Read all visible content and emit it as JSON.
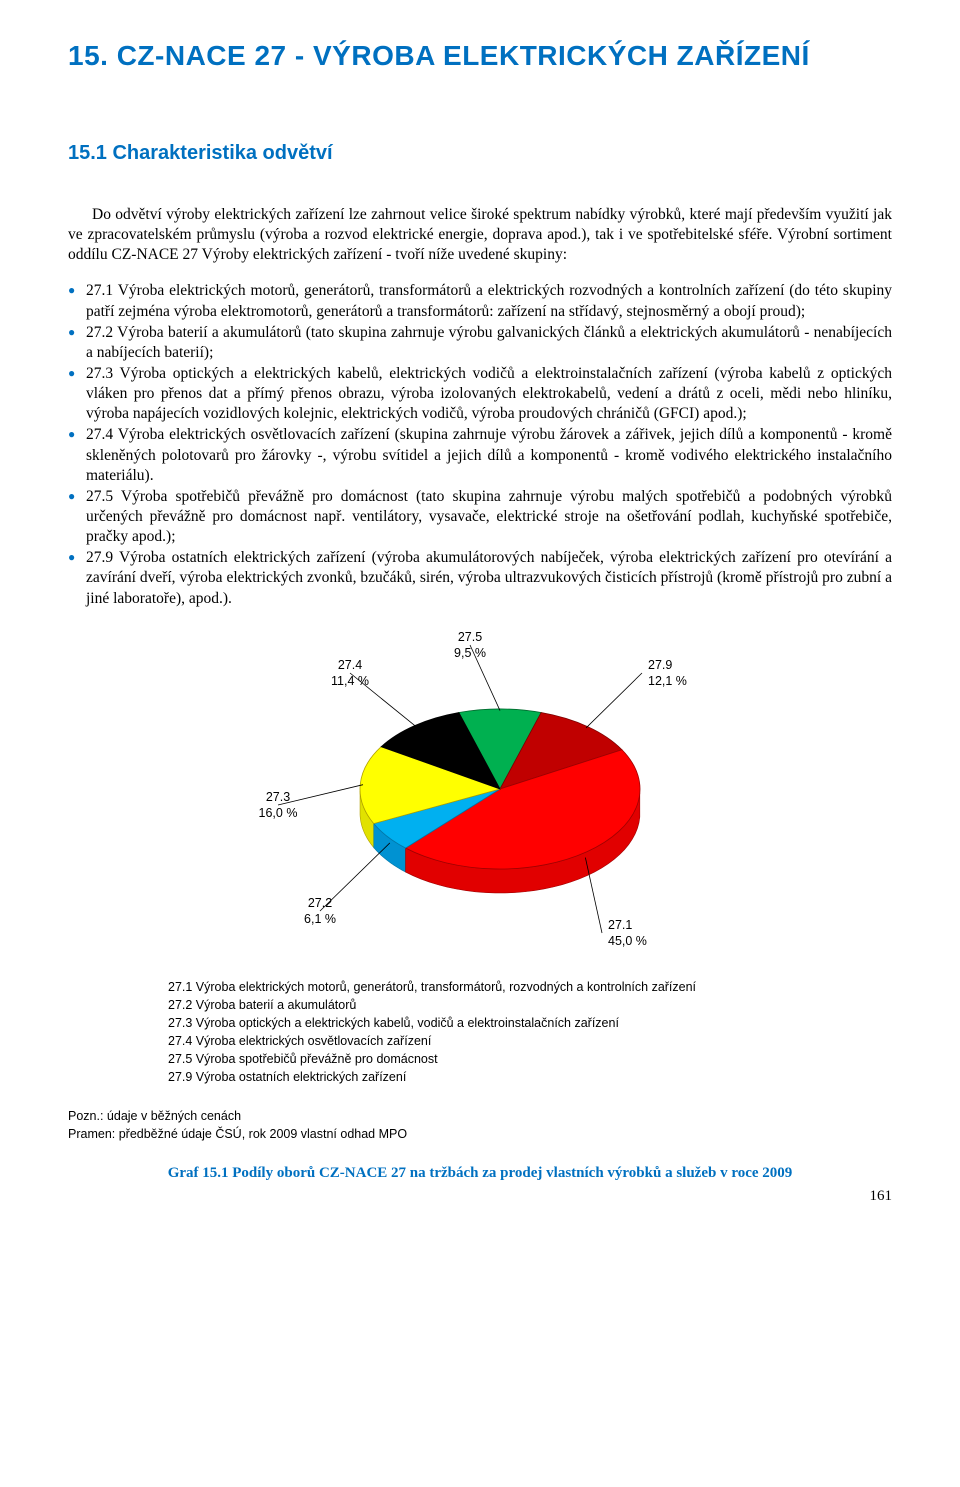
{
  "title": "15. CZ-NACE 27 - VÝROBA ELEKTRICKÝCH ZAŘÍZENÍ",
  "subhead": "15.1 Charakteristika odvětví",
  "para": "Do odvětví výroby elektrických zařízení lze zahrnout velice široké spektrum nabídky výrobků, které mají především využití jak ve zpracovatelském průmyslu (výroba a rozvod elektrické energie, doprava apod.), tak i ve spotřebitelské sféře. Výrobní sortiment oddílu CZ-NACE 27 Výroby elektrických zařízení - tvoří níže uvedené skupiny:",
  "items": [
    "27.1 Výroba elektrických motorů, generátorů, transformátorů a elektrických rozvodných a kontrolních zařízení (do této skupiny patří zejména výroba elektromotorů, generátorů a transformátorů: zařízení na střídavý, stejnosměrný a obojí proud);",
    "27.2 Výroba baterií a akumulátorů (tato skupina zahrnuje výrobu galvanických článků a elektrických akumulátorů - nenabíjecích a nabíjecích baterií);",
    "27.3 Výroba optických a elektrických kabelů, elektrických vodičů a elektroinstalačních zařízení (výroba kabelů z optických vláken pro přenos dat a přímý přenos obrazu, výroba izolovaných elektrokabelů, vedení a drátů z oceli, mědi nebo hliníku, výroba napájecích vozidlových kolejnic, elektrických vodičů, výroba proudových chráničů (GFCI) apod.);",
    "27.4 Výroba elektrických osvětlovacích zařízení (skupina zahrnuje výrobu žárovek a zářivek, jejich dílů a komponentů - kromě skleněných polotovarů pro žárovky -, výrobu svítidel a jejich dílů a komponentů - kromě vodivého elektrického instalačního materiálu).",
    "27.5 Výroba spotřebičů převážně pro domácnost (tato skupina zahrnuje výrobu malých spotřebičů a podobných výrobků určených převážně pro domácnost např. ventilátory, vysavače, elektrické stroje na ošetřování podlah, kuchyňské spotřebiče, pračky apod.);",
    "27.9 Výroba ostatních elektrických zařízení (výroba akumulátorových nabíječek, výroba elektrických zařízení pro otevírání a zavírání dveří, výroba elektrických zvonků, bzučáků, sirén, výroba ultrazvukových čisticích přístrojů (kromě přístrojů pro zubní a jiné laboratoře), apod.)."
  ],
  "chart": {
    "type": "pie",
    "slices": [
      {
        "code": "27.5",
        "label": "27.5",
        "pct": "9,5 %",
        "value": 9.5,
        "fill": "#00b050",
        "stroke": "#006b2e"
      },
      {
        "code": "27.9",
        "label": "27.9",
        "pct": "12,1 %",
        "value": 12.1,
        "fill": "#c00000",
        "stroke": "#7a0000"
      },
      {
        "code": "27.1",
        "label": "27.1",
        "pct": "45,0 %",
        "value": 45.0,
        "fill": "#ff0000",
        "stroke": "#a00000"
      },
      {
        "code": "27.2",
        "label": "27.2",
        "pct": "6,1 %",
        "value": 6.1,
        "fill": "#00b0f0",
        "stroke": "#0077a8"
      },
      {
        "code": "27.3",
        "label": "27.3",
        "pct": "16,0 %",
        "value": 16.0,
        "fill": "#ffff00",
        "stroke": "#b0a000"
      },
      {
        "code": "27.4",
        "label": "27.4",
        "pct": "11,4 %",
        "value": 11.4,
        "fill": "#000000",
        "stroke": "#000000"
      }
    ],
    "label_fontsize": 12.5,
    "label_color": "#000000",
    "background": "#ffffff",
    "labels": {
      "l0": "27.5",
      "p0": "9,5 %",
      "l1": "27.9",
      "p1": "12,1 %",
      "l2": "27.1",
      "p2": "45,0 %",
      "l3": "27.2",
      "p3": "6,1 %",
      "l4": "27.3",
      "p4": "16,0 %",
      "l5": "27.4",
      "p5": "11,4 %"
    }
  },
  "legend": [
    "27.1 Výroba elektrických motorů, generátorů, transformátorů, rozvodných a kontrolních zařízení",
    "27.2 Výroba baterií a akumulátorů",
    "27.3 Výroba optických a elektrických kabelů, vodičů a elektroinstalačních zařízení",
    "27.4 Výroba elektrických osvětlovacích zařízení",
    "27.5 Výroba spotřebičů převážně pro domácnost",
    "27.9 Výroba ostatních elektrických zařízení"
  ],
  "note1": "Pozn.: údaje v běžných cenách",
  "note2": "Pramen: předběžné údaje ČSÚ, rok 2009  vlastní odhad MPO",
  "caption": "Graf 15.1 Podíly oborů CZ-NACE 27 na tržbách za prodej vlastních výrobků a služeb v roce 2009",
  "pagenum": "161"
}
